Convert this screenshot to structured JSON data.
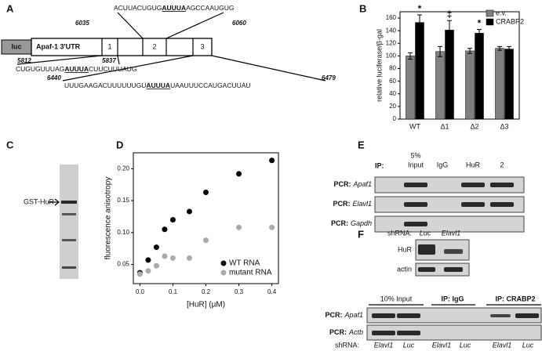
{
  "panel_labels": [
    "A",
    "B",
    "C",
    "D",
    "E",
    "F"
  ],
  "panel_a": {
    "construct": {
      "luc": "luc",
      "utr": "Apaf-1 3'UTR",
      "regions": [
        "1",
        "2",
        "3"
      ]
    },
    "sequences": [
      {
        "start": 6035,
        "end": 6060,
        "before": "ACUUACUGUG",
        "motif": "AUUUA",
        "after": "AGCCAAUGUG"
      },
      {
        "start": 5812,
        "end": 5837,
        "before": "CUGUGUUUAG",
        "motif": "AUUUA",
        "after": "CUUCUUUAUG"
      },
      {
        "start": 6440,
        "end": 6479,
        "before": "UUUGAAGACUUUUUUGU",
        "motif": "AUUUA",
        "after": "UAAUUUCCAUGACUUAU"
      }
    ]
  },
  "chart_data": [
    {
      "type": "bar",
      "ylabel": "relative luciferase/β-gal",
      "categories": [
        "WT",
        "Δ1",
        "Δ2",
        "Δ3"
      ],
      "ylim": [
        0,
        170
      ],
      "yticks": [
        0,
        20,
        40,
        60,
        80,
        100,
        120,
        140,
        160
      ],
      "legend": "upper right",
      "series": [
        {
          "name": "e.v.",
          "color": "#808080",
          "values": [
            100,
            107,
            108,
            112
          ],
          "errors": [
            5,
            8,
            4,
            3
          ]
        },
        {
          "name": "CRABP2",
          "color": "#000000",
          "values": [
            153,
            141,
            136,
            111
          ],
          "errors": [
            12,
            15,
            6,
            4
          ]
        }
      ],
      "annotations": [
        {
          "text": "*",
          "category": "WT"
        },
        {
          "text": "‡",
          "category": "Δ1"
        },
        {
          "text": "*",
          "category": "Δ2"
        }
      ]
    },
    {
      "type": "scatter",
      "xlabel": "[HuR] (µM)",
      "ylabel": "fluorescence anisotropy",
      "x": [
        0,
        0.025,
        0.05,
        0.075,
        0.1,
        0.15,
        0.2,
        0.3,
        0.4
      ],
      "xlim": [
        -0.02,
        0.42
      ],
      "xticks": [
        {
          "value": 0,
          "label": "0.0"
        },
        0.1,
        0.2,
        0.3,
        0.4
      ],
      "ylim": [
        0.02,
        0.225
      ],
      "yticks": [
        0.05,
        {
          "value": 0.1,
          "label": "0.10"
        },
        0.15,
        {
          "value": 0.2,
          "label": "0.20"
        }
      ],
      "legend": "lower right",
      "series": [
        {
          "name": "WT RNA",
          "color": "#000000",
          "values": [
            0.037,
            0.057,
            0.077,
            0.105,
            0.12,
            0.133,
            0.163,
            0.192,
            0.213
          ]
        },
        {
          "name": "mutant RNA",
          "color": "#aaaaaa",
          "values": [
            0.035,
            0.04,
            0.048,
            0.063,
            0.06,
            0.06,
            0.088,
            0.108,
            0.108
          ]
        }
      ]
    }
  ],
  "panel_c": {
    "band_label": "GST-HuR"
  },
  "panel_e": {
    "ip_label": "IP:",
    "input_lane": [
      "5%",
      "Input"
    ],
    "lanes": [
      "IgG",
      "HuR",
      "2"
    ],
    "rows": [
      {
        "prefix": "PCR:",
        "gene": "Apaf1"
      },
      {
        "prefix": "PCR:",
        "gene": "Elavl1"
      },
      {
        "prefix": "PCR:",
        "gene": "Gapdh"
      }
    ]
  },
  "panel_f": {
    "shrna_label": "shRNA:",
    "top_lanes": [
      "Luc",
      "Elavl1"
    ],
    "blots": [
      "HuR",
      "actin"
    ],
    "groups": [
      "10% Input",
      "IP: IgG",
      "IP: CRABP2"
    ],
    "rows": [
      {
        "prefix": "PCR:",
        "gene": "Apaf1"
      },
      {
        "prefix": "PCR:",
        "gene": "Actb"
      }
    ],
    "bottom_lanes": [
      "Elavl1",
      "Luc",
      "Elavl1",
      "Luc",
      "Elavl1",
      "Luc"
    ]
  }
}
